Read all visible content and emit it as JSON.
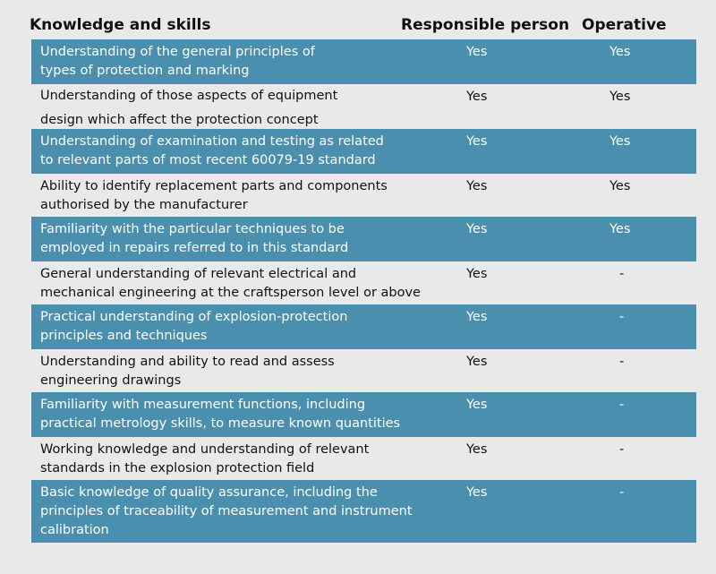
{
  "headers": {
    "knowledge": "Knowledge and skills",
    "responsible": "Responsible person",
    "operative": "Operative"
  },
  "rows": [
    {
      "lines": [
        "Understanding of the general principles of",
        "types of protection and marking"
      ],
      "responsible": "Yes",
      "operative": "Yes"
    },
    {
      "lines": [
        "Understanding of those aspects of equipment",
        "design which affect the protection concept"
      ],
      "responsible": "Yes",
      "operative": "Yes"
    },
    {
      "lines": [
        "Understanding of examination and testing as related",
        "to relevant parts of most recent 60079-19 standard"
      ],
      "responsible": "Yes",
      "operative": "Yes"
    },
    {
      "lines": [
        "Ability to identify replacement parts and components",
        "authorised by the manufacturer"
      ],
      "responsible": "Yes",
      "operative": "Yes"
    },
    {
      "lines": [
        "Familiarity with the particular techniques to be",
        "employed in repairs referred to in this standard"
      ],
      "responsible": "Yes",
      "operative": "Yes"
    },
    {
      "lines": [
        "General understanding of relevant electrical and",
        "mechanical engineering at the craftsperson level or above"
      ],
      "responsible": "Yes",
      "operative": "-"
    },
    {
      "lines": [
        "Practical understanding of explosion-protection",
        "principles and techniques"
      ],
      "responsible": "Yes",
      "operative": "-"
    },
    {
      "lines": [
        "Understanding and ability to read and assess",
        "engineering drawings"
      ],
      "responsible": "Yes",
      "operative": "-"
    },
    {
      "lines": [
        "Familiarity with measurement functions, including",
        "practical metrology skills, to measure known quantities"
      ],
      "responsible": "Yes",
      "operative": "-"
    },
    {
      "lines": [
        "Working knowledge and understanding of relevant",
        "standards in the explosion protection field"
      ],
      "responsible": "Yes",
      "operative": "-"
    },
    {
      "lines": [
        "Basic knowledge of quality assurance, including the",
        "principles of traceability of measurement and instrument",
        "calibration"
      ],
      "responsible": "Yes",
      "operative": "-"
    }
  ],
  "colors": {
    "shaded_row": "#4a8fad",
    "background": "#e9e9ea"
  }
}
